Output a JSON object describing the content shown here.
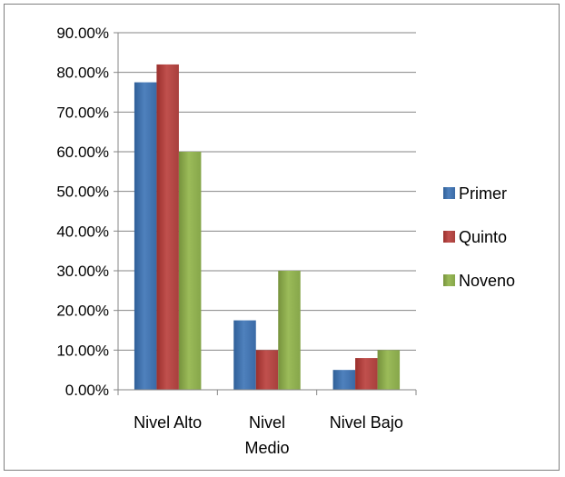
{
  "chart_data": {
    "type": "bar",
    "categories": [
      [
        "Nivel Alto"
      ],
      [
        "Nivel",
        "Medio"
      ],
      [
        "Nivel Bajo"
      ]
    ],
    "series": [
      {
        "name": "Primer",
        "color": "#4F81BD",
        "values": [
          77.5,
          17.5,
          5.0
        ]
      },
      {
        "name": "Quinto",
        "color": "#C0504D",
        "values": [
          82.0,
          10.0,
          8.0
        ]
      },
      {
        "name": "Noveno",
        "color": "#9BBB59",
        "values": [
          60.0,
          30.0,
          10.0
        ]
      }
    ],
    "ylim": [
      0,
      90
    ],
    "ytick_step": 10,
    "ytick_labels": [
      "0.00%",
      "10.00%",
      "20.00%",
      "30.00%",
      "40.00%",
      "50.00%",
      "60.00%",
      "70.00%",
      "80.00%",
      "90.00%"
    ],
    "grid": true,
    "legend_position": "right",
    "title": "",
    "xlabel": "",
    "ylabel": ""
  }
}
